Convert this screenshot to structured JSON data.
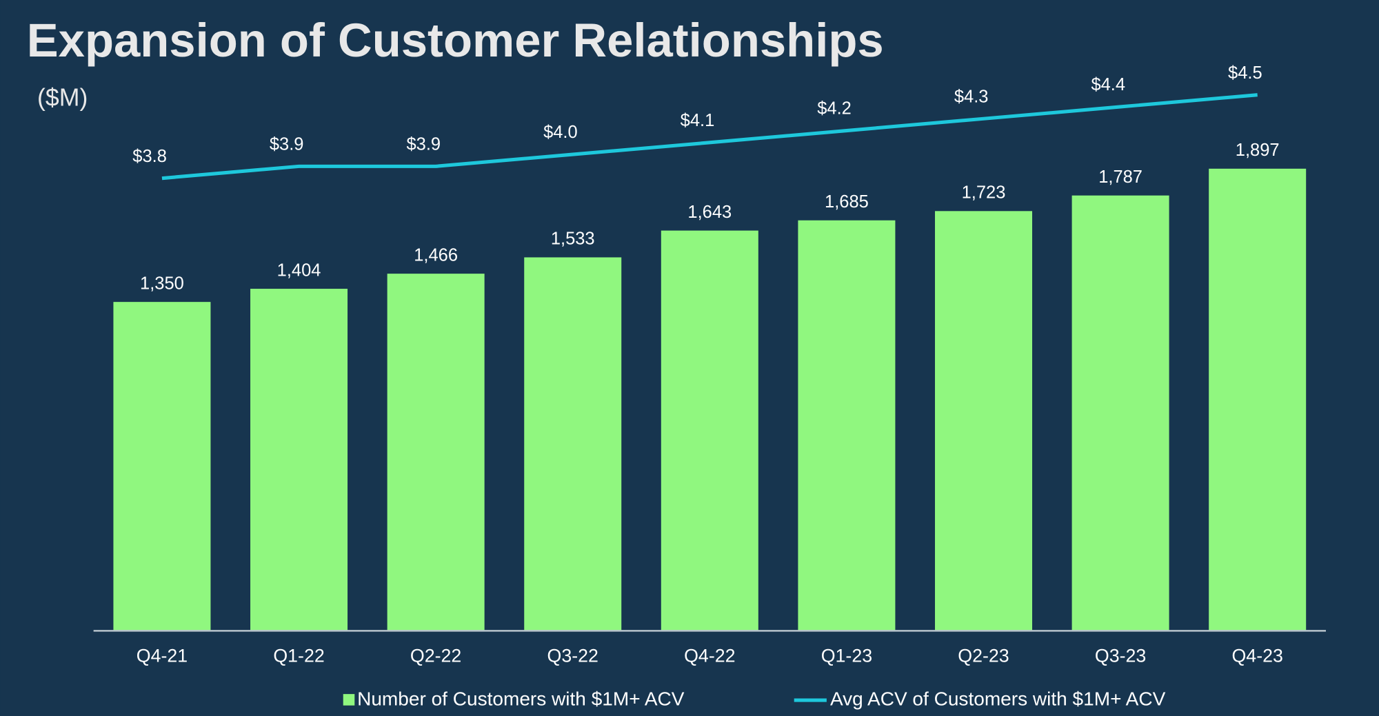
{
  "chart_data": {
    "type": "bar-line",
    "title": "Expansion of Customer Relationships",
    "subtitle": "($M)",
    "categories": [
      "Q4-21",
      "Q1-22",
      "Q2-22",
      "Q3-22",
      "Q4-22",
      "Q1-23",
      "Q2-23",
      "Q3-23",
      "Q4-23"
    ],
    "series": [
      {
        "name": "Number of Customers with $1M+ ACV",
        "type": "bar",
        "color": "#90f77f",
        "values": [
          1350,
          1404,
          1466,
          1533,
          1643,
          1685,
          1723,
          1787,
          1897
        ],
        "value_labels": [
          "1,350",
          "1,404",
          "1,466",
          "1,533",
          "1,643",
          "1,685",
          "1,723",
          "1,787",
          "1,897"
        ]
      },
      {
        "name": "Avg ACV of Customers with $1M+ ACV",
        "type": "line",
        "axis": "y2",
        "color": "#1ec8dc",
        "values": [
          3.8,
          3.9,
          3.9,
          4.0,
          4.1,
          4.2,
          4.3,
          4.4,
          4.5
        ],
        "value_labels": [
          "$3.8",
          "$3.9",
          "$3.9",
          "$4.0",
          "$4.1",
          "$4.2",
          "$4.3",
          "$4.4",
          "$4.5"
        ]
      }
    ],
    "ylim": [
      0,
      2200
    ],
    "y2lim": [
      0,
      4.5
    ],
    "legend": "bottom"
  }
}
